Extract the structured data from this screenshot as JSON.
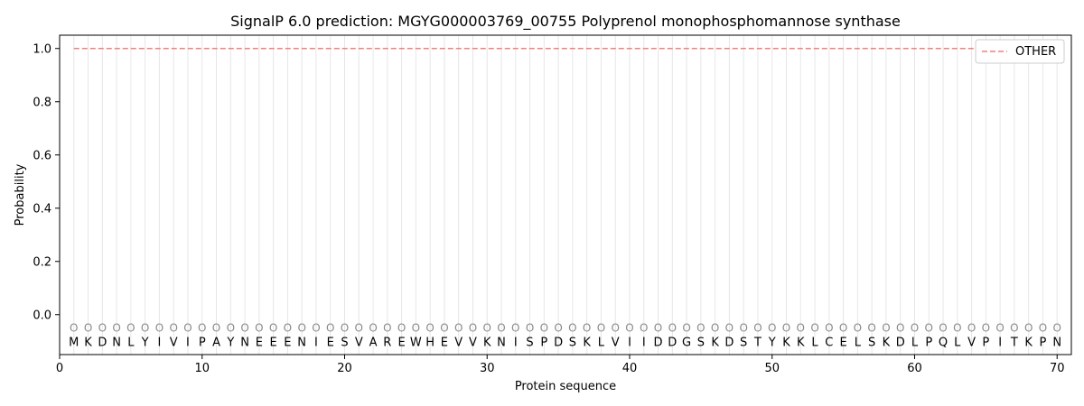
{
  "chart_data": {
    "type": "line",
    "title": "SignalP 6.0 prediction: MGYG000003769_00755 Polyprenol monophosphomannose synthase",
    "xlabel": "Protein sequence",
    "ylabel": "Probability",
    "xlim": [
      0,
      71
    ],
    "ylim": [
      -0.15,
      1.05
    ],
    "xticks": [
      0,
      10,
      20,
      30,
      40,
      50,
      60,
      70
    ],
    "yticks": [
      0.0,
      0.2,
      0.4,
      0.6,
      0.8,
      1.0
    ],
    "xtick_labels": [
      "0",
      "10",
      "20",
      "30",
      "40",
      "50",
      "60",
      "70"
    ],
    "ytick_labels": [
      "0.0",
      "0.2",
      "0.4",
      "0.6",
      "0.8",
      "1.0"
    ],
    "sequence": "MKDNLYIVIPAYNEEENIESVAREWHEVVKNISPDSKLVIIDDGSKDSTYKKLCELSKDLPQLVPITKPN",
    "state_labels": "OOOOOOOOOOOOOOOOOOOOOOOOOOOOOOOOOOOOOOOOOOOOOOOOOOOOOOOOOOOOOOOOOOOOOO",
    "series": [
      {
        "name": "OTHER",
        "color": "#f08080",
        "style": "dashed",
        "x_range": [
          1,
          70
        ],
        "value": 1.0
      }
    ],
    "grid": "vertical lines at each residue",
    "legend_position": "top-right"
  }
}
